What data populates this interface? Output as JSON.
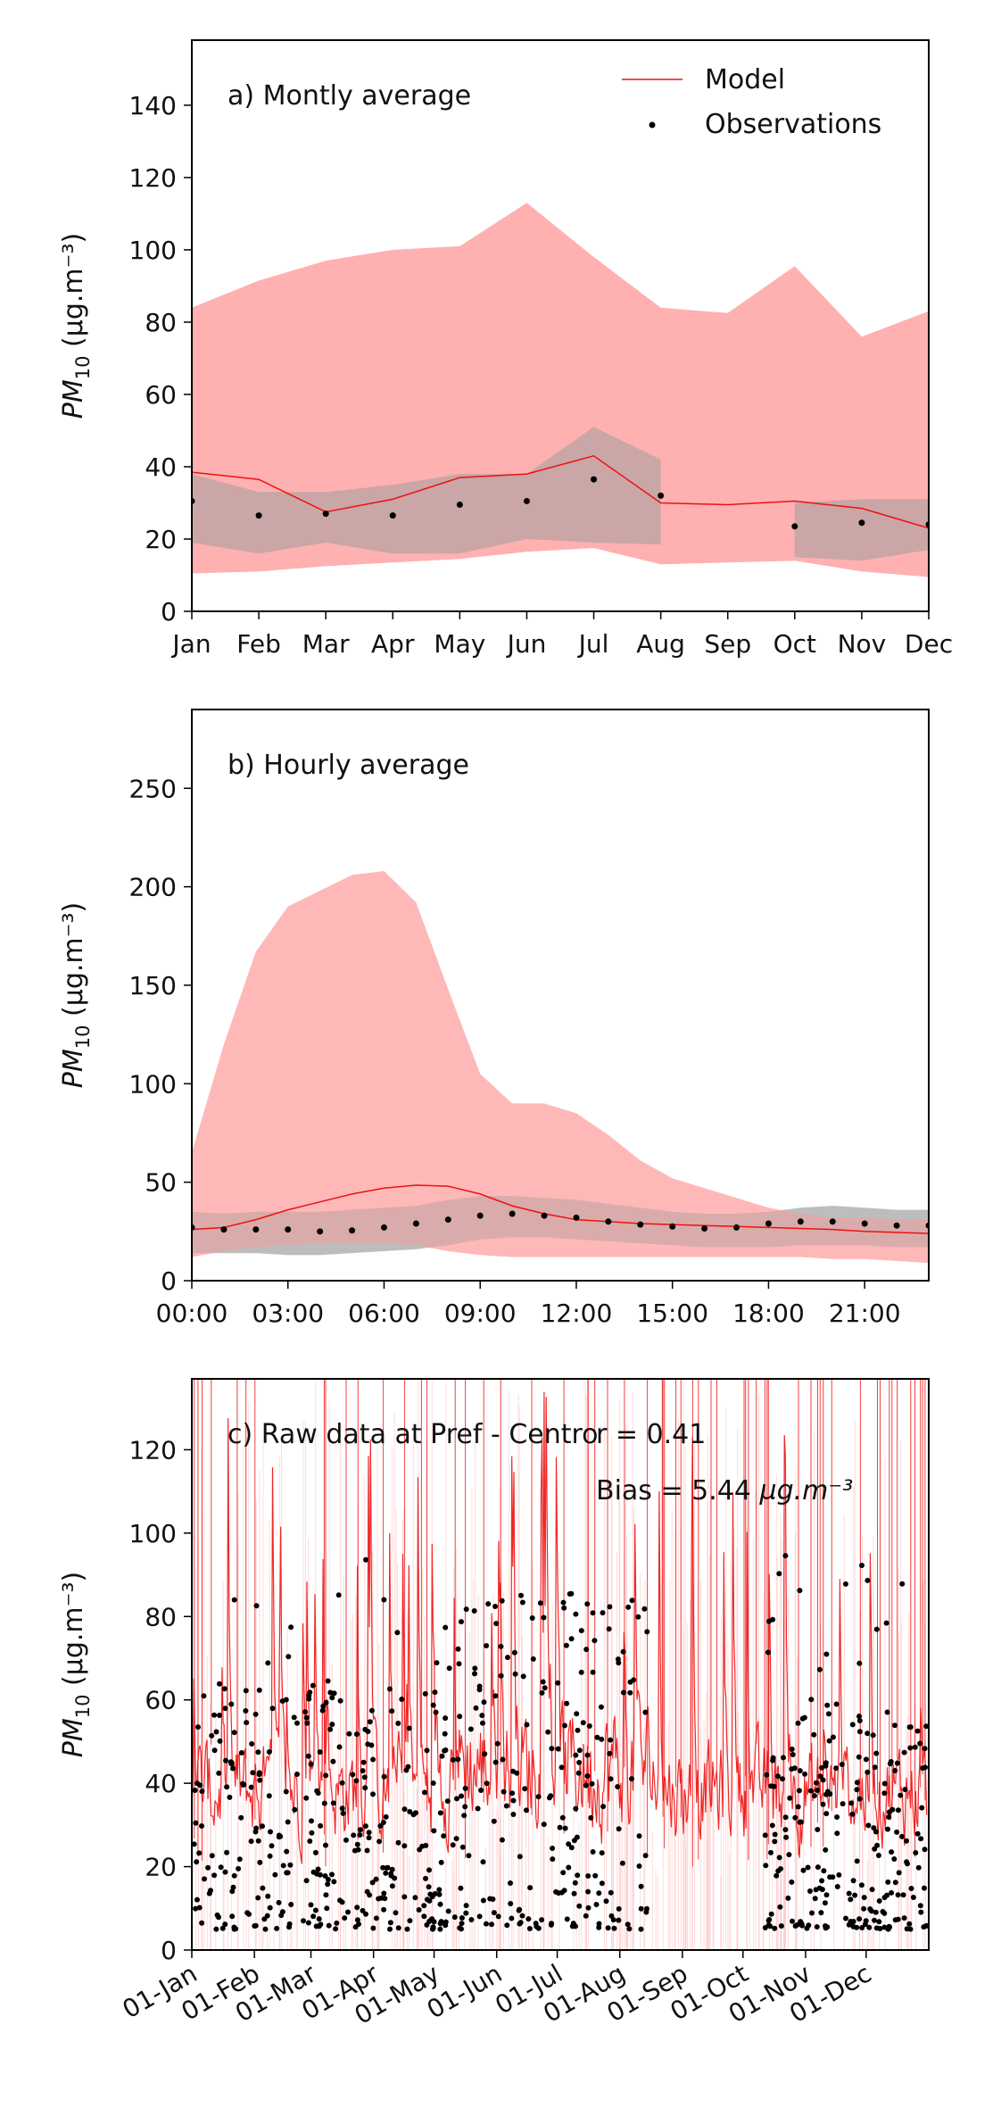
{
  "colors": {
    "model": "#ee1111",
    "model_band": "#ffb0b0",
    "obs_band": "#9e9e9e",
    "observations": "#000000"
  },
  "legend": {
    "model": "Model",
    "observations": "Observations"
  },
  "chart_data": [
    {
      "type": "line",
      "title": "a) Montly average",
      "ylabel": "PM10 (µg.m⁻³)",
      "ylim": [
        0,
        158
      ],
      "yticks": [
        0,
        20,
        40,
        60,
        80,
        100,
        120,
        140
      ],
      "categories": [
        "Jan",
        "Feb",
        "Mar",
        "Apr",
        "May",
        "Jun",
        "Jul",
        "Aug",
        "Sep",
        "Oct",
        "Nov",
        "Dec"
      ],
      "legend_position": "top-right",
      "series": [
        {
          "name": "Model",
          "kind": "line",
          "values": [
            38.5,
            36.5,
            27.5,
            31,
            37,
            38,
            43,
            30,
            29.5,
            30.5,
            28.5,
            23
          ]
        },
        {
          "name": "Observations",
          "kind": "points",
          "values": [
            30.5,
            26.5,
            27,
            26.5,
            29.5,
            30.5,
            36.5,
            32,
            null,
            23.5,
            24.5,
            24
          ]
        }
      ],
      "model_range": {
        "upper": [
          84,
          91.5,
          97,
          100,
          101,
          113,
          98,
          84,
          82.5,
          95.5,
          76,
          83
        ],
        "lower": [
          10.5,
          11,
          12.5,
          13.5,
          14.5,
          16.5,
          17.5,
          13,
          13.5,
          14,
          11,
          9.5
        ]
      },
      "obs_range": [
        {
          "x": [
            0,
            1,
            2,
            3,
            4,
            5,
            6,
            7
          ],
          "upper": [
            38,
            33,
            33,
            35,
            38,
            38,
            51,
            42
          ],
          "lower": [
            19,
            16,
            19,
            16,
            16,
            20,
            19,
            18.5
          ]
        },
        {
          "x": [
            9,
            10,
            11
          ],
          "upper": [
            30,
            31,
            31
          ],
          "lower": [
            15,
            14,
            17
          ]
        }
      ]
    },
    {
      "type": "line",
      "title": "b) Hourly average",
      "ylabel": "PM10 (µg.m⁻³)",
      "ylim": [
        0,
        290
      ],
      "yticks": [
        0,
        50,
        100,
        150,
        200,
        250
      ],
      "x": [
        0,
        1,
        2,
        3,
        4,
        5,
        6,
        7,
        8,
        9,
        10,
        11,
        12,
        13,
        14,
        15,
        16,
        17,
        18,
        19,
        20,
        21,
        22,
        23
      ],
      "xticks": [
        0,
        3,
        6,
        9,
        12,
        15,
        18,
        21
      ],
      "xticklabels": [
        "00:00",
        "03:00",
        "06:00",
        "09:00",
        "12:00",
        "15:00",
        "18:00",
        "21:00"
      ],
      "series": [
        {
          "name": "Model",
          "kind": "line",
          "values": [
            26,
            27,
            31,
            36,
            40,
            44,
            47,
            48.5,
            48,
            44,
            38,
            34,
            31,
            30,
            29,
            28.5,
            28,
            27.5,
            27,
            26.5,
            26,
            25,
            24.5,
            24
          ]
        },
        {
          "name": "Observations",
          "kind": "points",
          "values": [
            27,
            26,
            26,
            26,
            25,
            25.5,
            27,
            29,
            31,
            33,
            34,
            33,
            32,
            30,
            28.5,
            27.5,
            26.5,
            27,
            29,
            30,
            30,
            29,
            28,
            28
          ]
        }
      ],
      "model_range": {
        "upper": [
          65,
          120,
          167,
          190,
          198,
          206,
          208,
          192,
          148,
          105,
          90,
          90,
          85,
          74,
          61,
          52,
          47,
          42,
          37,
          34,
          32,
          32,
          31,
          31
        ],
        "lower": [
          12,
          15,
          17,
          18,
          19,
          19,
          19,
          18,
          15,
          13,
          12,
          12,
          12,
          12,
          12,
          12,
          12,
          12,
          12,
          12,
          11,
          11,
          10,
          9
        ]
      },
      "obs_range": [
        {
          "x": [
            0,
            1,
            2,
            3,
            4,
            5,
            6,
            7,
            8,
            9,
            10,
            11,
            12,
            13,
            14,
            15,
            16,
            17,
            18,
            19,
            20,
            21,
            22,
            23
          ],
          "upper": [
            35,
            34,
            35,
            35,
            35,
            36,
            37,
            38,
            41,
            43,
            43,
            42,
            41,
            39,
            37,
            35,
            34,
            34,
            35,
            37,
            38,
            37,
            36,
            36
          ],
          "lower": [
            14,
            14,
            14,
            13,
            13,
            14,
            15,
            16,
            18,
            21,
            22,
            22,
            21,
            20,
            19,
            18,
            17,
            17,
            17,
            18,
            18,
            18,
            17,
            17
          ]
        }
      ]
    },
    {
      "type": "line",
      "title": "c) Raw data at Pref - Centro",
      "ylabel": "PM10 (µg.m⁻³)",
      "ylim": [
        0,
        137
      ],
      "yticks": [
        0,
        20,
        40,
        60,
        80,
        100,
        120
      ],
      "xticks": [
        1,
        32,
        60,
        91,
        121,
        152,
        182,
        213,
        244,
        274,
        305,
        335
      ],
      "xticklabels": [
        "01-Jan",
        "01-Feb",
        "01-Mar",
        "01-Apr",
        "01-May",
        "01-Jun",
        "01-Jul",
        "01-Aug",
        "01-Sep",
        "01-Oct",
        "01-Nov",
        "01-Dec"
      ],
      "xlim": [
        1,
        366
      ],
      "stats": {
        "r": "r = 0.41",
        "bias": "Bias = 5.44 µg.m⁻³"
      },
      "obs_gaps_days": [
        [
          227,
          285
        ]
      ],
      "series": [
        {
          "name": "Model",
          "kind": "line",
          "resolution": "hourly",
          "typical_range": [
            2,
            137
          ]
        },
        {
          "name": "Observations",
          "kind": "points",
          "resolution": "hourly",
          "typical_range": [
            5,
            98
          ]
        }
      ]
    }
  ]
}
